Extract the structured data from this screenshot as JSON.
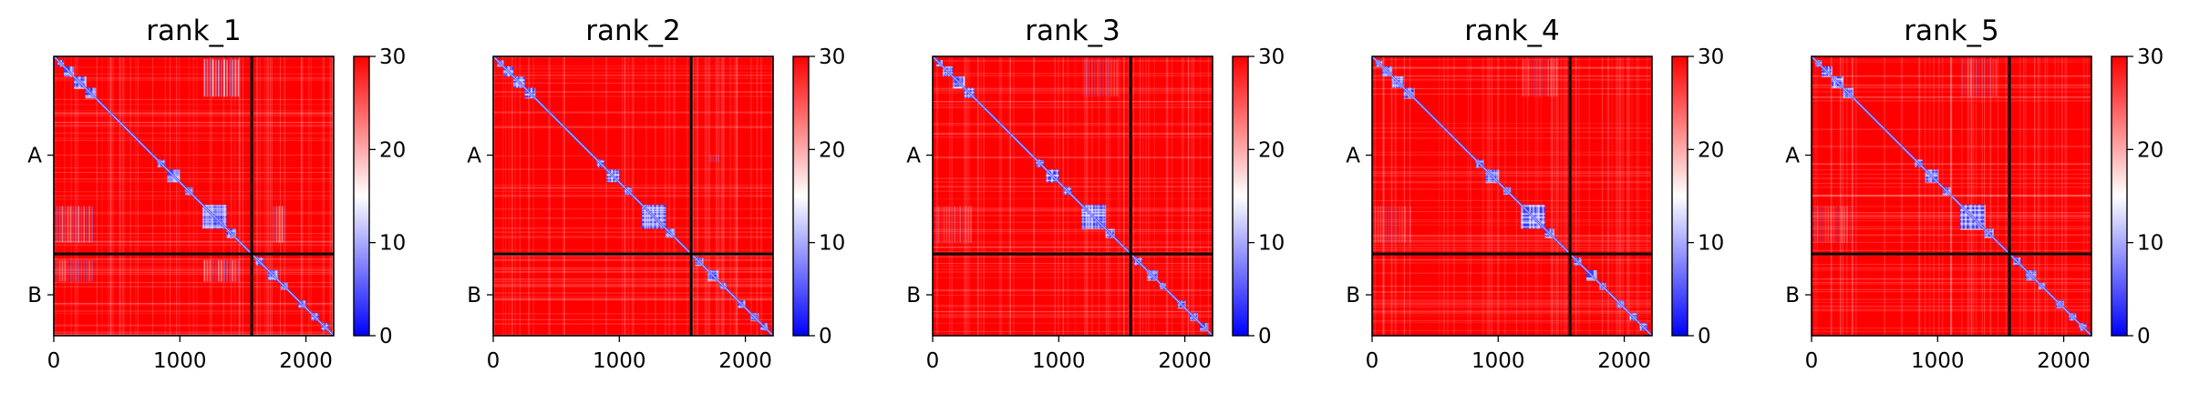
{
  "figure": {
    "background": "#ffffff"
  },
  "chart_data": [
    {
      "type": "heatmap",
      "title": "rank_1",
      "x_ticks": [
        0,
        1000,
        2000
      ],
      "y_ticks": [
        "A",
        "B"
      ],
      "xlim": [
        0,
        2220
      ],
      "boundary": 1570,
      "colorbar": {
        "ticks": [
          0,
          10,
          20,
          30
        ],
        "range": [
          0,
          30
        ],
        "colormap": [
          "#0000ff",
          "#ffffff",
          "#ff0000"
        ]
      },
      "blocks": [
        [
          30,
          80
        ],
        [
          80,
          160
        ],
        [
          160,
          250
        ],
        [
          250,
          330
        ],
        [
          820,
          880
        ],
        [
          900,
          1000
        ],
        [
          1040,
          1100
        ],
        [
          1180,
          1370
        ],
        [
          1370,
          1440
        ],
        [
          1600,
          1660
        ],
        [
          1700,
          1780
        ],
        [
          1800,
          1850
        ],
        [
          1940,
          2000
        ],
        [
          2040,
          2100
        ],
        [
          2120,
          2180
        ]
      ],
      "off_blue": [
        [
          20,
          320,
          1190,
          1480,
          0.6
        ],
        [
          1190,
          1480,
          20,
          320,
          0.6
        ],
        [
          1620,
          1790,
          20,
          320,
          0.5
        ],
        [
          1620,
          1790,
          1190,
          1480,
          0.55
        ],
        [
          30,
          320,
          1190,
          1480,
          0.4
        ],
        [
          1190,
          1480,
          1740,
          1850,
          0.55
        ]
      ]
    },
    {
      "type": "heatmap",
      "title": "rank_2",
      "x_ticks": [
        0,
        1000,
        2000
      ],
      "y_ticks": [
        "A",
        "B"
      ],
      "xlim": [
        0,
        2220
      ],
      "boundary": 1570,
      "colorbar": {
        "ticks": [
          0,
          10,
          20,
          30
        ],
        "range": [
          0,
          30
        ],
        "colormap": [
          "#0000ff",
          "#ffffff",
          "#ff0000"
        ]
      },
      "blocks": [
        [
          30,
          80
        ],
        [
          80,
          160
        ],
        [
          160,
          250
        ],
        [
          250,
          330
        ],
        [
          820,
          880
        ],
        [
          900,
          1000
        ],
        [
          1040,
          1100
        ],
        [
          1180,
          1370
        ],
        [
          1370,
          1440
        ],
        [
          1600,
          1660
        ],
        [
          1700,
          1780
        ],
        [
          1800,
          1850
        ],
        [
          1940,
          2000
        ],
        [
          2040,
          2100
        ],
        [
          2120,
          2180
        ]
      ],
      "off_blue": [
        [
          780,
          840,
          1720,
          1800,
          0.5
        ]
      ]
    },
    {
      "type": "heatmap",
      "title": "rank_3",
      "x_ticks": [
        0,
        1000,
        2000
      ],
      "y_ticks": [
        "A",
        "B"
      ],
      "xlim": [
        0,
        2220
      ],
      "boundary": 1570,
      "colorbar": {
        "ticks": [
          0,
          10,
          20,
          30
        ],
        "range": [
          0,
          30
        ],
        "colormap": [
          "#0000ff",
          "#ffffff",
          "#ff0000"
        ]
      },
      "blocks": [
        [
          30,
          80
        ],
        [
          80,
          160
        ],
        [
          160,
          250
        ],
        [
          250,
          330
        ],
        [
          820,
          880
        ],
        [
          900,
          1000
        ],
        [
          1040,
          1100
        ],
        [
          1180,
          1370
        ],
        [
          1370,
          1440
        ],
        [
          1600,
          1660
        ],
        [
          1700,
          1780
        ],
        [
          1800,
          1850
        ],
        [
          1940,
          2000
        ],
        [
          2040,
          2100
        ],
        [
          2120,
          2180
        ]
      ],
      "off_blue": [
        [
          20,
          320,
          1190,
          1480,
          0.3
        ],
        [
          1190,
          1480,
          20,
          320,
          0.3
        ]
      ]
    },
    {
      "type": "heatmap",
      "title": "rank_4",
      "x_ticks": [
        0,
        1000,
        2000
      ],
      "y_ticks": [
        "A",
        "B"
      ],
      "xlim": [
        0,
        2220
      ],
      "boundary": 1570,
      "colorbar": {
        "ticks": [
          0,
          10,
          20,
          30
        ],
        "range": [
          0,
          30
        ],
        "colormap": [
          "#0000ff",
          "#ffffff",
          "#ff0000"
        ]
      },
      "blocks": [
        [
          30,
          80
        ],
        [
          80,
          160
        ],
        [
          160,
          250
        ],
        [
          250,
          330
        ],
        [
          820,
          880
        ],
        [
          900,
          1000
        ],
        [
          1040,
          1100
        ],
        [
          1180,
          1370
        ],
        [
          1370,
          1440
        ],
        [
          1600,
          1660
        ],
        [
          1700,
          1780
        ],
        [
          1800,
          1850
        ],
        [
          1940,
          2000
        ],
        [
          2040,
          2100
        ],
        [
          2120,
          2180
        ]
      ],
      "off_blue": [
        [
          20,
          320,
          1190,
          1480,
          0.3
        ],
        [
          1190,
          1480,
          20,
          320,
          0.3
        ]
      ]
    },
    {
      "type": "heatmap",
      "title": "rank_5",
      "x_ticks": [
        0,
        1000,
        2000
      ],
      "y_ticks": [
        "A",
        "B"
      ],
      "xlim": [
        0,
        2220
      ],
      "boundary": 1570,
      "colorbar": {
        "ticks": [
          0,
          10,
          20,
          30
        ],
        "range": [
          0,
          30
        ],
        "colormap": [
          "#0000ff",
          "#ffffff",
          "#ff0000"
        ]
      },
      "blocks": [
        [
          30,
          80
        ],
        [
          80,
          160
        ],
        [
          160,
          250
        ],
        [
          250,
          330
        ],
        [
          820,
          880
        ],
        [
          900,
          1000
        ],
        [
          1040,
          1100
        ],
        [
          1180,
          1370
        ],
        [
          1370,
          1440
        ],
        [
          1600,
          1660
        ],
        [
          1700,
          1780
        ],
        [
          1800,
          1850
        ],
        [
          1940,
          2000
        ],
        [
          2040,
          2100
        ],
        [
          2120,
          2180
        ]
      ],
      "off_blue": [
        [
          20,
          320,
          1190,
          1480,
          0.3
        ],
        [
          1190,
          1480,
          20,
          320,
          0.3
        ]
      ]
    }
  ]
}
